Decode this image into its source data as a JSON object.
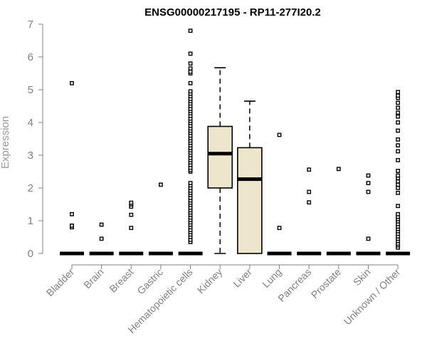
{
  "chart_data": {
    "type": "boxplot",
    "title": "ENSG00000217195 - RP11-277I20.2",
    "ylabel": "Expression",
    "xlabel": "",
    "ylim": [
      0,
      7
    ],
    "yticks": [
      0,
      1,
      2,
      3,
      4,
      5,
      6,
      7
    ],
    "grid": false,
    "colors": {
      "box_fill": "#ede6cc",
      "outline": "#000000",
      "axis_text": "#808080"
    },
    "categories": [
      "Bladder",
      "Brain",
      "Breast",
      "Gastric",
      "Hematopoietic cells",
      "Kidney",
      "Liver",
      "Lung",
      "Pancreas",
      "Prostate",
      "Skin",
      "Unknown / Other"
    ],
    "boxes": [
      {
        "category": "Bladder",
        "q1": 0,
        "median": 0,
        "q3": 0,
        "whisker_low": 0,
        "whisker_high": 0,
        "outliers": [
          0.8,
          0.85,
          1.2,
          5.2
        ]
      },
      {
        "category": "Brain",
        "q1": 0,
        "median": 0,
        "q3": 0,
        "whisker_low": 0,
        "whisker_high": 0,
        "outliers": [
          0.45,
          0.88
        ]
      },
      {
        "category": "Breast",
        "q1": 0,
        "median": 0,
        "q3": 0,
        "whisker_low": 0,
        "whisker_high": 0,
        "outliers": [
          0.78,
          1.18,
          1.43,
          1.5,
          1.55
        ]
      },
      {
        "category": "Gastric",
        "q1": 0,
        "median": 0,
        "q3": 0,
        "whisker_low": 0,
        "whisker_high": 0,
        "outliers": [
          2.1
        ]
      },
      {
        "category": "Hematopoietic cells",
        "q1": 0,
        "median": 0,
        "q3": 0,
        "whisker_low": 0,
        "whisker_high": 0,
        "outliers": [
          0.35,
          0.42,
          0.5,
          0.58,
          0.65,
          0.72,
          0.8,
          0.88,
          0.95,
          1.02,
          1.1,
          1.18,
          1.25,
          1.32,
          1.4,
          1.48,
          1.55,
          1.62,
          1.7,
          1.78,
          1.85,
          1.92,
          2.0,
          2.08,
          2.15,
          2.5,
          2.55,
          2.62,
          2.7,
          2.78,
          2.85,
          2.92,
          3.0,
          3.08,
          3.15,
          3.22,
          3.3,
          3.38,
          3.45,
          3.52,
          3.6,
          3.68,
          3.75,
          3.82,
          3.9,
          3.98,
          4.05,
          4.12,
          4.2,
          4.28,
          4.35,
          4.42,
          4.5,
          4.58,
          4.65,
          4.72,
          4.8,
          4.88,
          4.95,
          5.2,
          5.5,
          5.55,
          5.65,
          5.8,
          6.1,
          6.8
        ]
      },
      {
        "category": "Kidney",
        "q1": 2.0,
        "median": 3.05,
        "q3": 3.88,
        "whisker_low": 0,
        "whisker_high": 5.67,
        "outliers": []
      },
      {
        "category": "Liver",
        "q1": 0,
        "median": 2.27,
        "q3": 3.23,
        "whisker_low": 0,
        "whisker_high": 4.65,
        "outliers": []
      },
      {
        "category": "Lung",
        "q1": 0,
        "median": 0,
        "q3": 0,
        "whisker_low": 0,
        "whisker_high": 0,
        "outliers": [
          0.78,
          3.62
        ]
      },
      {
        "category": "Pancreas",
        "q1": 0,
        "median": 0,
        "q3": 0,
        "whisker_low": 0,
        "whisker_high": 0,
        "outliers": [
          1.56,
          1.88,
          2.56
        ]
      },
      {
        "category": "Prostate",
        "q1": 0,
        "median": 0,
        "q3": 0,
        "whisker_low": 0,
        "whisker_high": 0,
        "outliers": [
          2.58
        ]
      },
      {
        "category": "Skin",
        "q1": 0,
        "median": 0,
        "q3": 0,
        "whisker_low": 0,
        "whisker_high": 0,
        "outliers": [
          0.45,
          1.88,
          2.15,
          2.38
        ]
      },
      {
        "category": "Unknown / Other",
        "q1": 0,
        "median": 0,
        "q3": 0,
        "whisker_low": 0,
        "whisker_high": 0,
        "outliers": [
          0.18,
          0.25,
          0.3,
          0.38,
          0.45,
          0.52,
          0.6,
          0.68,
          0.75,
          0.82,
          0.9,
          0.98,
          1.05,
          1.12,
          1.2,
          1.45,
          1.85,
          2.0,
          2.1,
          2.2,
          2.3,
          2.38,
          2.52,
          2.85,
          3.12,
          3.3,
          3.48,
          3.75,
          4.0,
          4.18,
          4.3,
          4.45,
          4.6,
          4.75,
          4.82,
          4.93
        ]
      }
    ]
  }
}
